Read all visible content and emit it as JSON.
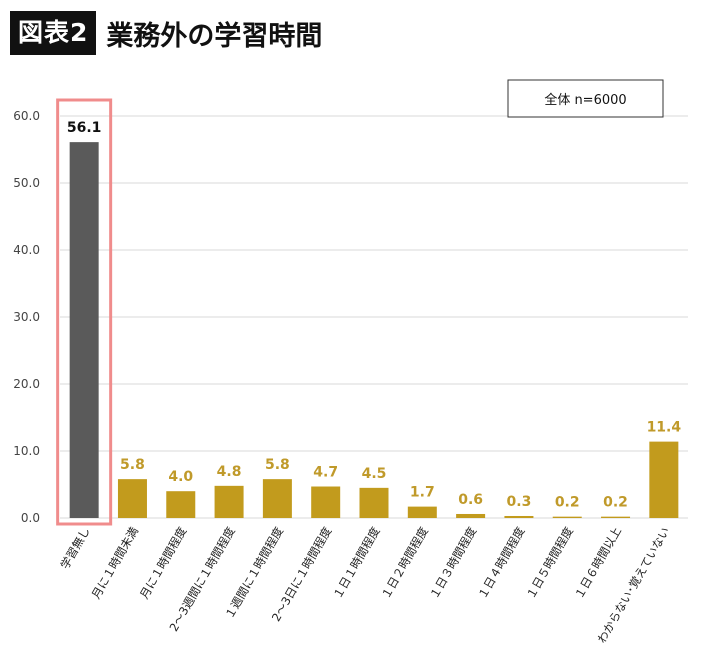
{
  "header": {
    "badge": "図表2",
    "title": "業務外の学習時間"
  },
  "colors": {
    "bar": "#c29b1d",
    "highlight_bar": "#5a5a5a",
    "highlight_border": "#f08c8c",
    "grid": "#d9d9d9"
  },
  "chart_data": {
    "type": "bar",
    "categories": [
      "学習無し",
      "月に１時間未満",
      "月に１時間程度",
      "2～3週間に１時間程度",
      "１週間に１時間程度",
      "2～3日に１時間程度",
      "１日１時間程度",
      "１日２時間程度",
      "１日３時間程度",
      "１日４時間程度",
      "１日５時間程度",
      "１日６時間以上",
      "わからない･覚えていない"
    ],
    "values": [
      56.1,
      5.8,
      4.0,
      4.8,
      5.8,
      4.7,
      4.5,
      1.7,
      0.6,
      0.3,
      0.2,
      0.2,
      11.4
    ],
    "value_labels": [
      "56.1",
      "5.8",
      "4.0",
      "4.8",
      "5.8",
      "4.7",
      "4.5",
      "1.7",
      "0.6",
      "0.3",
      "0.2",
      "0.2",
      "11.4"
    ],
    "highlight_index": 0,
    "ylim": [
      0,
      60
    ],
    "yticks": [
      "0.0",
      "10.0",
      "20.0",
      "30.0",
      "40.0",
      "50.0",
      "60.0"
    ],
    "ytick_values": [
      0,
      10,
      20,
      30,
      40,
      50,
      60
    ],
    "legend": "全体 n=6000",
    "legend_position": "top-right",
    "grid": true,
    "title": "",
    "xlabel": "",
    "ylabel": ""
  }
}
